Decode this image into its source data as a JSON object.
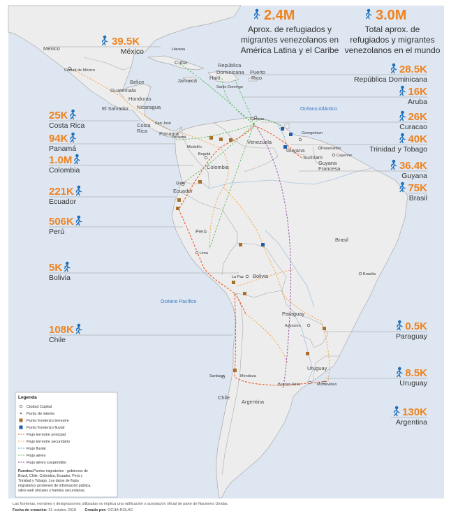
{
  "header": {
    "region_total": "2.4M",
    "region_caption": [
      "Aprox. de refugiados y",
      "migrantes venezolanos en",
      "América  Latina y el Caribe"
    ],
    "world_total": "3.0M",
    "world_caption": [
      "Total aprox. de",
      "refugiados y migrantes",
      "venezolanos en el mundo"
    ]
  },
  "countries_left": [
    {
      "id": "mexico",
      "value": "39.5K",
      "name": "México"
    },
    {
      "id": "costa-rica",
      "value": "25K",
      "name": "Costa Rica"
    },
    {
      "id": "panama",
      "value": "94K",
      "name": "Panamá"
    },
    {
      "id": "colombia",
      "value": "1.0M",
      "name": "Colombia"
    },
    {
      "id": "ecuador",
      "value": "221K",
      "name": "Ecuador"
    },
    {
      "id": "peru",
      "value": "506K",
      "name": "Perú"
    },
    {
      "id": "bolivia",
      "value": "5K",
      "name": "Bolivia"
    },
    {
      "id": "chile",
      "value": "108K",
      "name": "Chile"
    }
  ],
  "countries_right": [
    {
      "id": "republica-dominicana",
      "value": "28.5K",
      "name": "República Dominicana"
    },
    {
      "id": "aruba",
      "value": "16K",
      "name": "Aruba"
    },
    {
      "id": "curacao",
      "value": "26K",
      "name": "Curacao"
    },
    {
      "id": "trinidad",
      "value": "40K",
      "name": "Trinidad y Tobago"
    },
    {
      "id": "guyana",
      "value": "36.4K",
      "name": "Guyana"
    },
    {
      "id": "brasil",
      "value": "75K",
      "name": "Brasil"
    },
    {
      "id": "paraguay",
      "value": "0.5K",
      "name": "Paraguay"
    },
    {
      "id": "uruguay",
      "value": "8.5K",
      "name": "Uruguay"
    },
    {
      "id": "argentina",
      "value": "130K",
      "name": "Argentina"
    }
  ],
  "map_labels": {
    "countries": [
      "México",
      "Belice",
      "Guatemala",
      "Honduras",
      "El Salvador",
      "Nicaragua",
      "Costa Rica",
      "Panamá",
      "Colombia",
      "Venezuela",
      "Guyana",
      "Surinam",
      "Guyana Francesa",
      "Ecuador",
      "Perú",
      "Brasil",
      "Bolivia",
      "Paraguay",
      "Chile",
      "Argentina",
      "Uruguay",
      "Cuba",
      "Jamaica",
      "Haití",
      "República Dominicana",
      "Puerto Rico"
    ],
    "cities": [
      "Ciudad de México",
      "Havana",
      "San José",
      "Caracas",
      "Bogotá",
      "Medellín",
      "Georgetown",
      "Paramaribo",
      "Cayenne",
      "Quito",
      "Lima",
      "La Paz",
      "Brasilia",
      "Asunción",
      "Montevideo",
      "Buenos Aires",
      "Santiago",
      "Mendoza",
      "Santo Domingo",
      "Panamá"
    ],
    "oceans": [
      "Océano Atlántico",
      "Océano Pacífico"
    ]
  },
  "legend": {
    "title": "Legenda",
    "items": [
      "Ciudad Capital",
      "Punto de interés",
      "Punto fronterizo terrestre",
      "Punto fronterizo fluvial",
      "Flujo terrestre principal",
      "Flujo terrestre secundario",
      "Flujo fluvial",
      "Flujo aéreo",
      "Flujo aéreo suspendido"
    ],
    "sources_label": "Fuentes:",
    "sources_lines": [
      "Puntos migratorios - gobiernos de",
      "Brasil, Chile, Colombia, Ecuador, Perú  y",
      "Trinidad y Tobago. Los datos de flujos",
      "migratorios provienen de información pública,",
      "sitios web oficiales y fuentes secundarias."
    ]
  },
  "footer": {
    "disclaimer": "Las fronteras, nombres y designaciones utilizadas no implica una ratificación o aceptación oficial de parte de Naciones Unidas.",
    "date_label": "Fecha de creación:",
    "date_value": "31 octubre 2018",
    "creator_label": "Creado por:",
    "creator_value": "OCHA-ROLAC"
  },
  "colors": {
    "sea": "#dde6f1",
    "land": "#ededed",
    "border": "#aaaaaa",
    "accent": "#f0821e",
    "icon": "#1f6eb8",
    "flow_main": "#e8582a",
    "flow_secondary": "#f3a64b",
    "flow_river": "#3aa0d8",
    "flow_air": "#5cb85c",
    "flow_air_suspended": "#8a3d9e"
  }
}
